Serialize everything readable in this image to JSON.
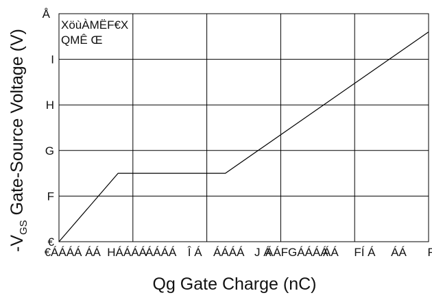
{
  "chart_data": {
    "type": "line",
    "title": "",
    "annotation": [
      "XöùÀMËF€X",
      "QMÊ Œ"
    ],
    "xlabel": "Qg Gate Charge (nC)",
    "ylabel": {
      "prefix": "-V",
      "subscript": "GS",
      "rest": " Gate-Source Voltage (V)"
    },
    "x_tick_labels": [
      "€ÁÁÁÁ",
      "ÁÁ",
      "HÁÁÁÁ",
      "ÁÁÁÁ",
      "Î Á",
      "ÁÁÁÁ",
      "J Á",
      "ÁÁFGÁÁÁÁ",
      "ÁÁ",
      "FÍ Á",
      "ÁÁ",
      "FÌ"
    ],
    "y_tick_labels": [
      "€",
      "F",
      "G",
      "H",
      "I",
      "Å"
    ],
    "xlim": [
      0,
      100
    ],
    "ylim": [
      0,
      5
    ],
    "x_gridlines": [
      20,
      40,
      60,
      80,
      100
    ],
    "y_gridlines": [
      1,
      2,
      3,
      4
    ],
    "grid": true,
    "legend": "none",
    "series": [
      {
        "x": [
          0,
          16,
          45,
          100
        ],
        "y": [
          0,
          1.5,
          1.5,
          4.6
        ]
      }
    ]
  },
  "colors": {
    "line": "#000000",
    "grid": "#000000",
    "text": "#111111"
  }
}
